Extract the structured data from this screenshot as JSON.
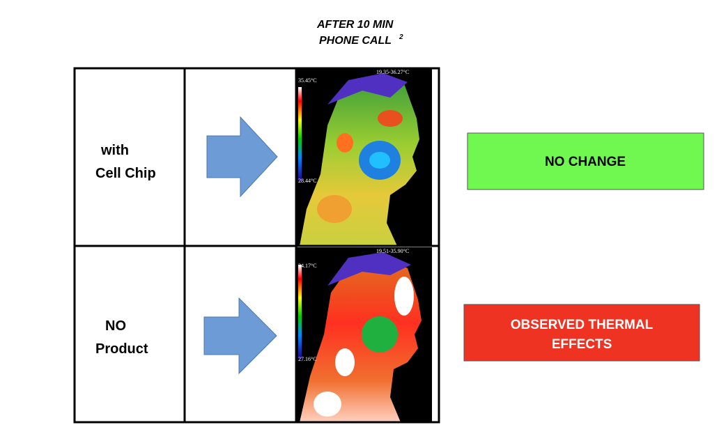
{
  "header": {
    "title_lines": [
      "AFTER 10 MIN",
      "PHONE CALL"
    ],
    "footnote": "2"
  },
  "rows": [
    {
      "label_lines": [
        "with",
        "Cell Chip"
      ],
      "result_lines": [
        "NO CHANGE"
      ],
      "image_texts": {
        "range": "19.35-36.27°C",
        "max": "35.45°C",
        "min": "28.44°C"
      }
    },
    {
      "label_lines": [
        "NO",
        "Product"
      ],
      "result_lines": [
        "OBSERVED THERMAL",
        "EFFECTS"
      ],
      "image_texts": {
        "range": "19.51-35.90°C",
        "max": "34.17°C",
        "min": "27.16°C"
      }
    }
  ]
}
